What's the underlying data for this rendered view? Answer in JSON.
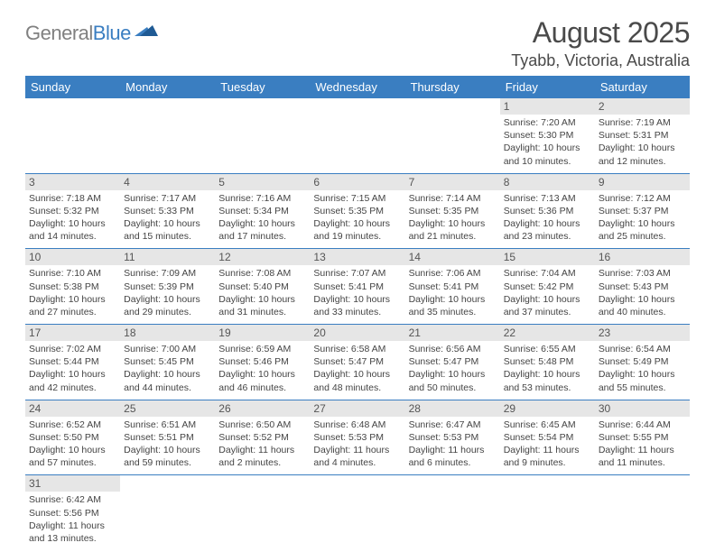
{
  "logo": {
    "gray": "General",
    "blue": "Blue"
  },
  "header": {
    "title": "August 2025",
    "location": "Tyabb, Victoria, Australia"
  },
  "colors": {
    "header_bg": "#3a7ec1",
    "daynum_bg": "#e6e6e6",
    "rule": "#3a7ec1"
  },
  "weekdays": [
    "Sunday",
    "Monday",
    "Tuesday",
    "Wednesday",
    "Thursday",
    "Friday",
    "Saturday"
  ],
  "weeks": [
    [
      {
        "n": "",
        "lines": [
          "",
          "",
          "",
          ""
        ]
      },
      {
        "n": "",
        "lines": [
          "",
          "",
          "",
          ""
        ]
      },
      {
        "n": "",
        "lines": [
          "",
          "",
          "",
          ""
        ]
      },
      {
        "n": "",
        "lines": [
          "",
          "",
          "",
          ""
        ]
      },
      {
        "n": "",
        "lines": [
          "",
          "",
          "",
          ""
        ]
      },
      {
        "n": "1",
        "lines": [
          "Sunrise: 7:20 AM",
          "Sunset: 5:30 PM",
          "Daylight: 10 hours",
          "and 10 minutes."
        ]
      },
      {
        "n": "2",
        "lines": [
          "Sunrise: 7:19 AM",
          "Sunset: 5:31 PM",
          "Daylight: 10 hours",
          "and 12 minutes."
        ]
      }
    ],
    [
      {
        "n": "3",
        "lines": [
          "Sunrise: 7:18 AM",
          "Sunset: 5:32 PM",
          "Daylight: 10 hours",
          "and 14 minutes."
        ]
      },
      {
        "n": "4",
        "lines": [
          "Sunrise: 7:17 AM",
          "Sunset: 5:33 PM",
          "Daylight: 10 hours",
          "and 15 minutes."
        ]
      },
      {
        "n": "5",
        "lines": [
          "Sunrise: 7:16 AM",
          "Sunset: 5:34 PM",
          "Daylight: 10 hours",
          "and 17 minutes."
        ]
      },
      {
        "n": "6",
        "lines": [
          "Sunrise: 7:15 AM",
          "Sunset: 5:35 PM",
          "Daylight: 10 hours",
          "and 19 minutes."
        ]
      },
      {
        "n": "7",
        "lines": [
          "Sunrise: 7:14 AM",
          "Sunset: 5:35 PM",
          "Daylight: 10 hours",
          "and 21 minutes."
        ]
      },
      {
        "n": "8",
        "lines": [
          "Sunrise: 7:13 AM",
          "Sunset: 5:36 PM",
          "Daylight: 10 hours",
          "and 23 minutes."
        ]
      },
      {
        "n": "9",
        "lines": [
          "Sunrise: 7:12 AM",
          "Sunset: 5:37 PM",
          "Daylight: 10 hours",
          "and 25 minutes."
        ]
      }
    ],
    [
      {
        "n": "10",
        "lines": [
          "Sunrise: 7:10 AM",
          "Sunset: 5:38 PM",
          "Daylight: 10 hours",
          "and 27 minutes."
        ]
      },
      {
        "n": "11",
        "lines": [
          "Sunrise: 7:09 AM",
          "Sunset: 5:39 PM",
          "Daylight: 10 hours",
          "and 29 minutes."
        ]
      },
      {
        "n": "12",
        "lines": [
          "Sunrise: 7:08 AM",
          "Sunset: 5:40 PM",
          "Daylight: 10 hours",
          "and 31 minutes."
        ]
      },
      {
        "n": "13",
        "lines": [
          "Sunrise: 7:07 AM",
          "Sunset: 5:41 PM",
          "Daylight: 10 hours",
          "and 33 minutes."
        ]
      },
      {
        "n": "14",
        "lines": [
          "Sunrise: 7:06 AM",
          "Sunset: 5:41 PM",
          "Daylight: 10 hours",
          "and 35 minutes."
        ]
      },
      {
        "n": "15",
        "lines": [
          "Sunrise: 7:04 AM",
          "Sunset: 5:42 PM",
          "Daylight: 10 hours",
          "and 37 minutes."
        ]
      },
      {
        "n": "16",
        "lines": [
          "Sunrise: 7:03 AM",
          "Sunset: 5:43 PM",
          "Daylight: 10 hours",
          "and 40 minutes."
        ]
      }
    ],
    [
      {
        "n": "17",
        "lines": [
          "Sunrise: 7:02 AM",
          "Sunset: 5:44 PM",
          "Daylight: 10 hours",
          "and 42 minutes."
        ]
      },
      {
        "n": "18",
        "lines": [
          "Sunrise: 7:00 AM",
          "Sunset: 5:45 PM",
          "Daylight: 10 hours",
          "and 44 minutes."
        ]
      },
      {
        "n": "19",
        "lines": [
          "Sunrise: 6:59 AM",
          "Sunset: 5:46 PM",
          "Daylight: 10 hours",
          "and 46 minutes."
        ]
      },
      {
        "n": "20",
        "lines": [
          "Sunrise: 6:58 AM",
          "Sunset: 5:47 PM",
          "Daylight: 10 hours",
          "and 48 minutes."
        ]
      },
      {
        "n": "21",
        "lines": [
          "Sunrise: 6:56 AM",
          "Sunset: 5:47 PM",
          "Daylight: 10 hours",
          "and 50 minutes."
        ]
      },
      {
        "n": "22",
        "lines": [
          "Sunrise: 6:55 AM",
          "Sunset: 5:48 PM",
          "Daylight: 10 hours",
          "and 53 minutes."
        ]
      },
      {
        "n": "23",
        "lines": [
          "Sunrise: 6:54 AM",
          "Sunset: 5:49 PM",
          "Daylight: 10 hours",
          "and 55 minutes."
        ]
      }
    ],
    [
      {
        "n": "24",
        "lines": [
          "Sunrise: 6:52 AM",
          "Sunset: 5:50 PM",
          "Daylight: 10 hours",
          "and 57 minutes."
        ]
      },
      {
        "n": "25",
        "lines": [
          "Sunrise: 6:51 AM",
          "Sunset: 5:51 PM",
          "Daylight: 10 hours",
          "and 59 minutes."
        ]
      },
      {
        "n": "26",
        "lines": [
          "Sunrise: 6:50 AM",
          "Sunset: 5:52 PM",
          "Daylight: 11 hours",
          "and 2 minutes."
        ]
      },
      {
        "n": "27",
        "lines": [
          "Sunrise: 6:48 AM",
          "Sunset: 5:53 PM",
          "Daylight: 11 hours",
          "and 4 minutes."
        ]
      },
      {
        "n": "28",
        "lines": [
          "Sunrise: 6:47 AM",
          "Sunset: 5:53 PM",
          "Daylight: 11 hours",
          "and 6 minutes."
        ]
      },
      {
        "n": "29",
        "lines": [
          "Sunrise: 6:45 AM",
          "Sunset: 5:54 PM",
          "Daylight: 11 hours",
          "and 9 minutes."
        ]
      },
      {
        "n": "30",
        "lines": [
          "Sunrise: 6:44 AM",
          "Sunset: 5:55 PM",
          "Daylight: 11 hours",
          "and 11 minutes."
        ]
      }
    ],
    [
      {
        "n": "31",
        "lines": [
          "Sunrise: 6:42 AM",
          "Sunset: 5:56 PM",
          "Daylight: 11 hours",
          "and 13 minutes."
        ]
      },
      {
        "n": "",
        "lines": [
          "",
          "",
          "",
          ""
        ]
      },
      {
        "n": "",
        "lines": [
          "",
          "",
          "",
          ""
        ]
      },
      {
        "n": "",
        "lines": [
          "",
          "",
          "",
          ""
        ]
      },
      {
        "n": "",
        "lines": [
          "",
          "",
          "",
          ""
        ]
      },
      {
        "n": "",
        "lines": [
          "",
          "",
          "",
          ""
        ]
      },
      {
        "n": "",
        "lines": [
          "",
          "",
          "",
          ""
        ]
      }
    ]
  ]
}
